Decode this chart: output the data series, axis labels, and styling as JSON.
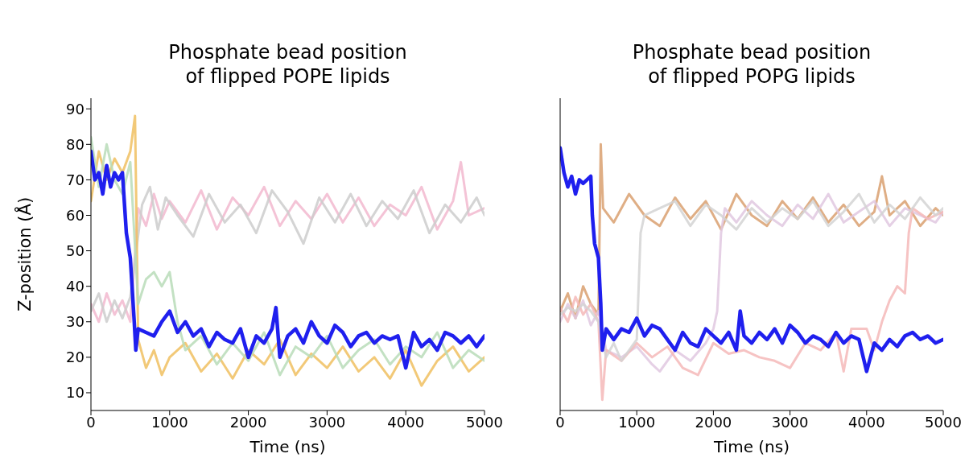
{
  "chart_data": [
    {
      "type": "line",
      "title": "Phosphate bead position\nof flipped POPE lipids",
      "xlabel": "Time (ns)",
      "ylabel": "Z-position (Å)",
      "xlim": [
        0,
        5000
      ],
      "xticks": [
        0,
        1000,
        2000,
        3000,
        4000,
        5000
      ],
      "ylim": [
        5,
        93
      ],
      "yticks": [
        10,
        20,
        30,
        40,
        50,
        60,
        70,
        80,
        90
      ],
      "line_style": "solid",
      "marker": "none",
      "series": [
        {
          "color": "#f2b8cf",
          "x": [
            0,
            100,
            200,
            300,
            400,
            500,
            600,
            700,
            800,
            900,
            1000,
            1200,
            1400,
            1600,
            1800,
            2000,
            2200,
            2400,
            2600,
            2800,
            3000,
            3200,
            3400,
            3600,
            3800,
            4000,
            4200,
            4400,
            4600,
            4700,
            4800,
            5000
          ],
          "values": [
            35,
            30,
            38,
            32,
            36,
            30,
            62,
            57,
            66,
            59,
            64,
            58,
            67,
            56,
            65,
            60,
            68,
            57,
            64,
            59,
            66,
            58,
            65,
            57,
            63,
            60,
            68,
            56,
            64,
            75,
            60,
            62
          ]
        },
        {
          "color": "#cccccc",
          "x": [
            0,
            100,
            200,
            300,
            400,
            500,
            650,
            750,
            850,
            950,
            1100,
            1300,
            1500,
            1700,
            1900,
            2100,
            2300,
            2500,
            2700,
            2900,
            3100,
            3300,
            3500,
            3700,
            3900,
            4100,
            4300,
            4500,
            4700,
            4900,
            5000
          ],
          "values": [
            33,
            38,
            30,
            36,
            31,
            37,
            63,
            68,
            56,
            65,
            60,
            54,
            66,
            58,
            63,
            55,
            67,
            61,
            52,
            65,
            58,
            66,
            57,
            64,
            59,
            67,
            55,
            63,
            58,
            65,
            60
          ]
        },
        {
          "color": "#f0c060",
          "x": [
            0,
            100,
            200,
            300,
            400,
            500,
            560,
            600,
            700,
            800,
            900,
            1000,
            1200,
            1400,
            1600,
            1800,
            2000,
            2200,
            2400,
            2600,
            2800,
            3000,
            3200,
            3400,
            3600,
            3800,
            4000,
            4200,
            4400,
            4600,
            4800,
            5000
          ],
          "values": [
            64,
            78,
            70,
            76,
            72,
            78,
            88,
            25,
            17,
            22,
            15,
            20,
            24,
            16,
            21,
            14,
            22,
            18,
            25,
            15,
            21,
            17,
            23,
            16,
            20,
            14,
            22,
            12,
            19,
            23,
            16,
            20
          ]
        },
        {
          "color": "#b8dcb8",
          "x": [
            0,
            100,
            200,
            300,
            400,
            500,
            600,
            700,
            800,
            900,
            1000,
            1100,
            1200,
            1400,
            1600,
            1800,
            2000,
            2200,
            2400,
            2600,
            2800,
            3000,
            3200,
            3400,
            3600,
            3800,
            4000,
            4200,
            4400,
            4600,
            4800,
            5000
          ],
          "values": [
            82,
            68,
            80,
            70,
            66,
            75,
            35,
            42,
            44,
            40,
            44,
            30,
            22,
            26,
            18,
            24,
            19,
            27,
            15,
            23,
            20,
            26,
            17,
            22,
            25,
            18,
            23,
            20,
            27,
            17,
            22,
            19
          ]
        },
        {
          "color": "#1f1fee",
          "x": [
            0,
            50,
            100,
            150,
            200,
            250,
            300,
            350,
            400,
            450,
            500,
            550,
            570,
            600,
            700,
            800,
            900,
            1000,
            1100,
            1200,
            1300,
            1400,
            1500,
            1600,
            1700,
            1800,
            1900,
            2000,
            2100,
            2200,
            2300,
            2350,
            2400,
            2500,
            2600,
            2700,
            2800,
            2900,
            3000,
            3100,
            3200,
            3300,
            3400,
            3500,
            3600,
            3700,
            3800,
            3900,
            4000,
            4100,
            4200,
            4300,
            4400,
            4500,
            4600,
            4700,
            4800,
            4900,
            5000
          ],
          "values": [
            78,
            70,
            72,
            66,
            74,
            68,
            72,
            70,
            72,
            55,
            48,
            30,
            22,
            28,
            27,
            26,
            30,
            33,
            27,
            30,
            26,
            28,
            23,
            27,
            25,
            24,
            28,
            20,
            26,
            24,
            28,
            34,
            20,
            26,
            28,
            24,
            30,
            26,
            24,
            29,
            27,
            23,
            26,
            27,
            24,
            26,
            25,
            26,
            17,
            27,
            23,
            25,
            22,
            27,
            26,
            24,
            26,
            23,
            26
          ]
        }
      ]
    },
    {
      "type": "line",
      "title": "Phosphate bead position\nof flipped POPG lipids",
      "xlabel": "Time (ns)",
      "xlim": [
        0,
        5000
      ],
      "xticks": [
        0,
        1000,
        2000,
        3000,
        4000,
        5000
      ],
      "ylim": [
        5,
        93
      ],
      "yticks": [
        10,
        20,
        30,
        40,
        50,
        60,
        70,
        80,
        90
      ],
      "tick_labels": "x",
      "line_style": "solid",
      "marker": "none",
      "series": [
        {
          "color": "#d9a070",
          "x": [
            0,
            100,
            200,
            300,
            400,
            500,
            530,
            560,
            700,
            900,
            1100,
            1300,
            1500,
            1700,
            1900,
            2100,
            2300,
            2500,
            2700,
            2900,
            3100,
            3300,
            3500,
            3700,
            3900,
            4100,
            4200,
            4300,
            4500,
            4700,
            4900,
            5000
          ],
          "values": [
            33,
            38,
            31,
            40,
            35,
            32,
            80,
            62,
            58,
            66,
            60,
            57,
            65,
            59,
            64,
            56,
            66,
            60,
            57,
            64,
            59,
            65,
            58,
            63,
            57,
            61,
            71,
            60,
            64,
            57,
            62,
            60
          ]
        },
        {
          "color": "#e0c8e0",
          "x": [
            0,
            100,
            200,
            300,
            400,
            500,
            600,
            800,
            1000,
            1200,
            1300,
            1500,
            1700,
            1900,
            2000,
            2050,
            2100,
            2150,
            2300,
            2500,
            2700,
            2900,
            3100,
            3300,
            3500,
            3700,
            3900,
            4100,
            4300,
            4500,
            4700,
            4900,
            5000
          ],
          "values": [
            30,
            35,
            31,
            36,
            29,
            33,
            22,
            20,
            23,
            18,
            16,
            22,
            19,
            24,
            28,
            33,
            55,
            62,
            58,
            64,
            60,
            57,
            63,
            59,
            66,
            58,
            61,
            64,
            57,
            62,
            60,
            58,
            61
          ]
        },
        {
          "color": "#f4b8b8",
          "x": [
            0,
            100,
            200,
            300,
            400,
            500,
            550,
            600,
            800,
            1000,
            1200,
            1400,
            1600,
            1800,
            2000,
            2200,
            2400,
            2600,
            2800,
            3000,
            3200,
            3400,
            3600,
            3700,
            3800,
            4000,
            4100,
            4200,
            4300,
            4400,
            4500,
            4550,
            4600,
            4800,
            5000
          ],
          "values": [
            34,
            30,
            37,
            32,
            35,
            30,
            8,
            22,
            19,
            24,
            20,
            23,
            17,
            15,
            24,
            21,
            22,
            20,
            19,
            17,
            24,
            22,
            27,
            16,
            28,
            28,
            22,
            30,
            36,
            40,
            38,
            55,
            62,
            59,
            61
          ]
        },
        {
          "color": "#d4d4d4",
          "x": [
            0,
            100,
            200,
            300,
            400,
            500,
            600,
            700,
            800,
            900,
            1000,
            1050,
            1100,
            1300,
            1500,
            1700,
            1900,
            2100,
            2300,
            2500,
            2700,
            2900,
            3100,
            3300,
            3500,
            3700,
            3900,
            4100,
            4300,
            4500,
            4700,
            4900,
            5000
          ],
          "values": [
            32,
            34,
            33,
            35,
            33,
            30,
            20,
            24,
            19,
            22,
            25,
            55,
            60,
            62,
            64,
            57,
            63,
            60,
            56,
            62,
            58,
            62,
            59,
            64,
            57,
            61,
            66,
            58,
            63,
            59,
            65,
            60,
            62
          ]
        },
        {
          "color": "#1f1fee",
          "x": [
            0,
            50,
            100,
            150,
            200,
            250,
            300,
            350,
            400,
            420,
            450,
            500,
            530,
            550,
            600,
            700,
            800,
            900,
            1000,
            1100,
            1200,
            1300,
            1400,
            1500,
            1600,
            1700,
            1800,
            1900,
            2000,
            2100,
            2200,
            2300,
            2350,
            2400,
            2500,
            2600,
            2700,
            2800,
            2900,
            3000,
            3100,
            3200,
            3300,
            3400,
            3500,
            3600,
            3700,
            3800,
            3900,
            4000,
            4100,
            4200,
            4300,
            4400,
            4500,
            4600,
            4700,
            4800,
            4900,
            5000
          ],
          "values": [
            79,
            72,
            68,
            71,
            66,
            70,
            69,
            70,
            71,
            60,
            52,
            48,
            35,
            22,
            28,
            25,
            28,
            27,
            31,
            26,
            29,
            28,
            25,
            22,
            27,
            24,
            23,
            28,
            26,
            24,
            27,
            22,
            33,
            26,
            24,
            27,
            25,
            28,
            24,
            29,
            27,
            24,
            26,
            25,
            23,
            27,
            24,
            26,
            25,
            16,
            24,
            22,
            25,
            23,
            26,
            27,
            25,
            26,
            24,
            25
          ]
        }
      ]
    }
  ]
}
